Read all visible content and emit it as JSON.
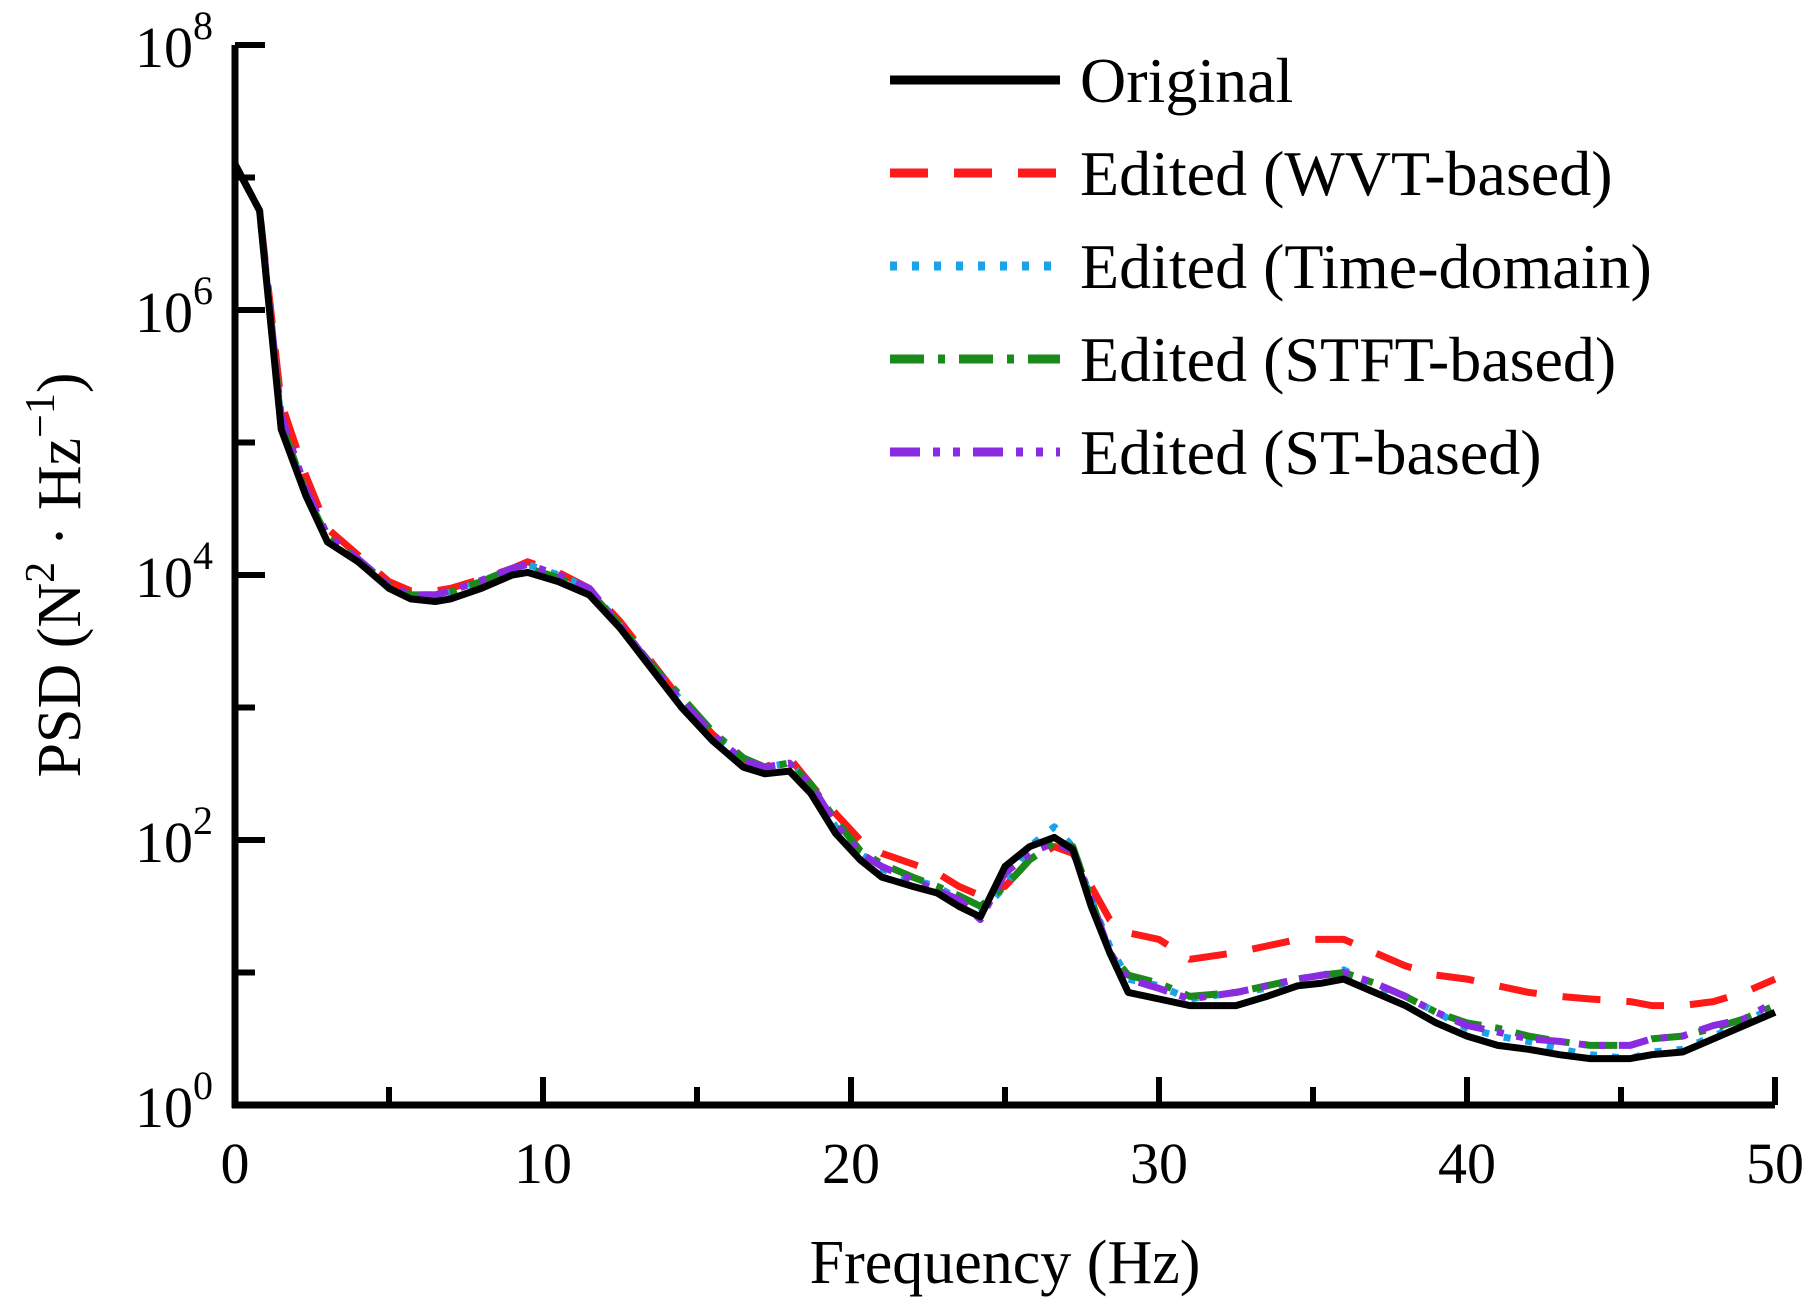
{
  "chart_data": {
    "type": "line",
    "title": "",
    "xlabel": "Frequency (Hz)",
    "ylabel": {
      "text": "PSD (N² · Hz⁻¹)",
      "prefix": "PSD (N",
      "sup1": "2",
      "middle": "· Hz",
      "sup2": "−1",
      "suffix": ")"
    },
    "xlim": [
      0,
      50
    ],
    "ylim_log10": [
      0,
      8
    ],
    "y_scale": "log",
    "x_ticks": [
      0,
      10,
      20,
      30,
      40,
      50
    ],
    "x_tick_labels": [
      "0",
      "10",
      "20",
      "30",
      "40",
      "50"
    ],
    "y_ticks": [
      {
        "base": "10",
        "exp": "0"
      },
      {
        "base": "10",
        "exp": "2"
      },
      {
        "base": "10",
        "exp": "4"
      },
      {
        "base": "10",
        "exp": "6"
      },
      {
        "base": "10",
        "exp": "8"
      }
    ],
    "legend_position": "top-right",
    "series": [
      {
        "name": "Original",
        "color": "#000000",
        "dash": "solid",
        "points": [
          [
            0,
            7.1
          ],
          [
            0.8,
            6.75
          ],
          [
            1.5,
            5.1
          ],
          [
            2.3,
            4.6
          ],
          [
            3,
            4.25
          ],
          [
            4,
            4.1
          ],
          [
            5,
            3.9
          ],
          [
            5.7,
            3.82
          ],
          [
            6.5,
            3.8
          ],
          [
            7,
            3.82
          ],
          [
            8,
            3.9
          ],
          [
            9,
            4.0
          ],
          [
            9.5,
            4.02
          ],
          [
            10.5,
            3.95
          ],
          [
            11.5,
            3.85
          ],
          [
            12.5,
            3.6
          ],
          [
            13.5,
            3.3
          ],
          [
            14.5,
            3.0
          ],
          [
            15.5,
            2.75
          ],
          [
            16.5,
            2.55
          ],
          [
            17.2,
            2.5
          ],
          [
            18,
            2.52
          ],
          [
            18.7,
            2.35
          ],
          [
            19.5,
            2.05
          ],
          [
            20.3,
            1.85
          ],
          [
            21,
            1.72
          ],
          [
            22,
            1.65
          ],
          [
            22.8,
            1.6
          ],
          [
            23.5,
            1.5
          ],
          [
            24.2,
            1.42
          ],
          [
            25,
            1.8
          ],
          [
            25.8,
            1.95
          ],
          [
            26.6,
            2.02
          ],
          [
            27.2,
            1.93
          ],
          [
            27.8,
            1.5
          ],
          [
            28.4,
            1.15
          ],
          [
            29,
            0.85
          ],
          [
            30,
            0.8
          ],
          [
            31,
            0.75
          ],
          [
            32.5,
            0.75
          ],
          [
            33.5,
            0.82
          ],
          [
            34.5,
            0.9
          ],
          [
            35.3,
            0.92
          ],
          [
            36,
            0.95
          ],
          [
            37,
            0.85
          ],
          [
            38,
            0.75
          ],
          [
            39,
            0.62
          ],
          [
            40,
            0.52
          ],
          [
            41,
            0.45
          ],
          [
            42,
            0.42
          ],
          [
            43,
            0.38
          ],
          [
            44,
            0.35
          ],
          [
            45.3,
            0.35
          ],
          [
            46,
            0.38
          ],
          [
            47,
            0.4
          ],
          [
            48,
            0.5
          ],
          [
            49,
            0.6
          ],
          [
            50,
            0.7
          ]
        ]
      },
      {
        "name": "Edited (WVT-based)",
        "color": "#ff1a1a",
        "dash": "long-dash",
        "points": [
          [
            0,
            7.1
          ],
          [
            0.8,
            6.75
          ],
          [
            1.5,
            5.3
          ],
          [
            2.3,
            4.75
          ],
          [
            3,
            4.35
          ],
          [
            4,
            4.15
          ],
          [
            5,
            3.95
          ],
          [
            5.7,
            3.88
          ],
          [
            6.5,
            3.88
          ],
          [
            7,
            3.9
          ],
          [
            8,
            3.97
          ],
          [
            9,
            4.05
          ],
          [
            9.5,
            4.1
          ],
          [
            10.5,
            4.02
          ],
          [
            11.5,
            3.9
          ],
          [
            12.5,
            3.65
          ],
          [
            13.5,
            3.35
          ],
          [
            14.5,
            3.05
          ],
          [
            15.5,
            2.8
          ],
          [
            16.5,
            2.6
          ],
          [
            17.2,
            2.55
          ],
          [
            18,
            2.62
          ],
          [
            18.7,
            2.42
          ],
          [
            19.5,
            2.2
          ],
          [
            20.3,
            2.0
          ],
          [
            21,
            1.9
          ],
          [
            22,
            1.82
          ],
          [
            22.8,
            1.75
          ],
          [
            23.5,
            1.65
          ],
          [
            24.2,
            1.58
          ],
          [
            25,
            1.65
          ],
          [
            25.8,
            1.85
          ],
          [
            26.6,
            1.95
          ],
          [
            27.2,
            1.9
          ],
          [
            27.8,
            1.65
          ],
          [
            28.4,
            1.4
          ],
          [
            29,
            1.3
          ],
          [
            30,
            1.25
          ],
          [
            31,
            1.1
          ],
          [
            32.5,
            1.15
          ],
          [
            33.5,
            1.2
          ],
          [
            34.5,
            1.25
          ],
          [
            35.3,
            1.25
          ],
          [
            36,
            1.25
          ],
          [
            37,
            1.15
          ],
          [
            38,
            1.05
          ],
          [
            39,
            0.98
          ],
          [
            40,
            0.95
          ],
          [
            41,
            0.9
          ],
          [
            42,
            0.85
          ],
          [
            43,
            0.82
          ],
          [
            44,
            0.8
          ],
          [
            45.3,
            0.78
          ],
          [
            46,
            0.75
          ],
          [
            47,
            0.75
          ],
          [
            48,
            0.78
          ],
          [
            49,
            0.85
          ],
          [
            50,
            0.95
          ]
        ]
      },
      {
        "name": "Edited (Time-domain)",
        "color": "#1aa3e8",
        "dash": "dotted",
        "points": [
          [
            0,
            7.1
          ],
          [
            0.8,
            6.75
          ],
          [
            1.5,
            5.15
          ],
          [
            2.3,
            4.62
          ],
          [
            3,
            4.28
          ],
          [
            4,
            4.12
          ],
          [
            5,
            3.92
          ],
          [
            5.7,
            3.85
          ],
          [
            6.5,
            3.85
          ],
          [
            7,
            3.87
          ],
          [
            8,
            3.95
          ],
          [
            9,
            4.05
          ],
          [
            9.5,
            4.08
          ],
          [
            10.5,
            4.0
          ],
          [
            11.5,
            3.9
          ],
          [
            12.5,
            3.62
          ],
          [
            13.5,
            3.32
          ],
          [
            14.5,
            3.05
          ],
          [
            15.5,
            2.8
          ],
          [
            16.5,
            2.6
          ],
          [
            17.2,
            2.55
          ],
          [
            18,
            2.58
          ],
          [
            18.7,
            2.42
          ],
          [
            19.5,
            2.1
          ],
          [
            20.3,
            1.9
          ],
          [
            21,
            1.78
          ],
          [
            22,
            1.7
          ],
          [
            22.8,
            1.65
          ],
          [
            23.5,
            1.55
          ],
          [
            24.2,
            1.45
          ],
          [
            25,
            1.65
          ],
          [
            25.8,
            1.95
          ],
          [
            26.6,
            2.1
          ],
          [
            27.2,
            1.95
          ],
          [
            27.8,
            1.55
          ],
          [
            28.4,
            1.2
          ],
          [
            29,
            0.95
          ],
          [
            30,
            0.9
          ],
          [
            31,
            0.8
          ],
          [
            32.5,
            0.85
          ],
          [
            33.5,
            0.88
          ],
          [
            34.5,
            0.95
          ],
          [
            35.3,
            0.98
          ],
          [
            36,
            1.02
          ],
          [
            37,
            0.9
          ],
          [
            38,
            0.82
          ],
          [
            39,
            0.7
          ],
          [
            40,
            0.58
          ],
          [
            41,
            0.52
          ],
          [
            42,
            0.48
          ],
          [
            43,
            0.42
          ],
          [
            44,
            0.38
          ],
          [
            45.3,
            0.35
          ],
          [
            46,
            0.4
          ],
          [
            47,
            0.42
          ],
          [
            48,
            0.52
          ],
          [
            49,
            0.62
          ],
          [
            50,
            0.75
          ]
        ]
      },
      {
        "name": "Edited (STFT-based)",
        "color": "#1a8a1a",
        "dash": "dash-dot",
        "points": [
          [
            0,
            7.1
          ],
          [
            0.8,
            6.75
          ],
          [
            1.5,
            5.15
          ],
          [
            2.3,
            4.62
          ],
          [
            3,
            4.28
          ],
          [
            4,
            4.12
          ],
          [
            5,
            3.92
          ],
          [
            5.7,
            3.85
          ],
          [
            6.5,
            3.85
          ],
          [
            7,
            3.87
          ],
          [
            8,
            3.95
          ],
          [
            9,
            4.05
          ],
          [
            9.5,
            4.05
          ],
          [
            10.5,
            3.98
          ],
          [
            11.5,
            3.88
          ],
          [
            12.5,
            3.62
          ],
          [
            13.5,
            3.33
          ],
          [
            14.5,
            3.08
          ],
          [
            15.5,
            2.82
          ],
          [
            16.5,
            2.62
          ],
          [
            17.2,
            2.55
          ],
          [
            18,
            2.58
          ],
          [
            18.7,
            2.42
          ],
          [
            19.5,
            2.15
          ],
          [
            20.3,
            1.92
          ],
          [
            21,
            1.82
          ],
          [
            22,
            1.72
          ],
          [
            22.8,
            1.65
          ],
          [
            23.5,
            1.58
          ],
          [
            24.2,
            1.5
          ],
          [
            25,
            1.65
          ],
          [
            25.8,
            1.85
          ],
          [
            26.6,
            1.98
          ],
          [
            27.2,
            1.95
          ],
          [
            27.8,
            1.55
          ],
          [
            28.4,
            1.15
          ],
          [
            29,
            0.98
          ],
          [
            30,
            0.92
          ],
          [
            31,
            0.82
          ],
          [
            32.5,
            0.85
          ],
          [
            33.5,
            0.9
          ],
          [
            34.5,
            0.95
          ],
          [
            35.3,
            0.98
          ],
          [
            36,
            1.0
          ],
          [
            37,
            0.92
          ],
          [
            38,
            0.82
          ],
          [
            39,
            0.7
          ],
          [
            40,
            0.62
          ],
          [
            41,
            0.58
          ],
          [
            42,
            0.52
          ],
          [
            43,
            0.48
          ],
          [
            44,
            0.45
          ],
          [
            45.3,
            0.45
          ],
          [
            46,
            0.5
          ],
          [
            47,
            0.52
          ],
          [
            48,
            0.58
          ],
          [
            49,
            0.65
          ],
          [
            50,
            0.75
          ]
        ]
      },
      {
        "name": "Edited (ST-based)",
        "color": "#8a2be2",
        "dash": "dash-dot-dot",
        "points": [
          [
            0,
            7.1
          ],
          [
            0.8,
            6.75
          ],
          [
            1.5,
            5.2
          ],
          [
            2.3,
            4.65
          ],
          [
            3,
            4.3
          ],
          [
            4,
            4.12
          ],
          [
            5,
            3.92
          ],
          [
            5.7,
            3.85
          ],
          [
            6.5,
            3.85
          ],
          [
            7,
            3.88
          ],
          [
            8,
            3.96
          ],
          [
            9,
            4.05
          ],
          [
            9.5,
            4.08
          ],
          [
            10.5,
            4.0
          ],
          [
            11.5,
            3.9
          ],
          [
            12.5,
            3.62
          ],
          [
            13.5,
            3.32
          ],
          [
            14.5,
            3.05
          ],
          [
            15.5,
            2.8
          ],
          [
            16.5,
            2.6
          ],
          [
            17.2,
            2.55
          ],
          [
            18,
            2.58
          ],
          [
            18.7,
            2.42
          ],
          [
            19.5,
            2.12
          ],
          [
            20.3,
            1.9
          ],
          [
            21,
            1.8
          ],
          [
            22,
            1.7
          ],
          [
            22.8,
            1.62
          ],
          [
            23.5,
            1.55
          ],
          [
            24.2,
            1.4
          ],
          [
            25,
            1.75
          ],
          [
            25.8,
            1.9
          ],
          [
            26.6,
            1.98
          ],
          [
            27.2,
            1.92
          ],
          [
            27.8,
            1.55
          ],
          [
            28.4,
            1.15
          ],
          [
            29,
            0.95
          ],
          [
            30,
            0.88
          ],
          [
            31,
            0.8
          ],
          [
            32.5,
            0.85
          ],
          [
            33.5,
            0.9
          ],
          [
            34.5,
            0.95
          ],
          [
            35.3,
            0.98
          ],
          [
            36,
            1.0
          ],
          [
            37,
            0.92
          ],
          [
            38,
            0.82
          ],
          [
            39,
            0.7
          ],
          [
            40,
            0.6
          ],
          [
            41,
            0.55
          ],
          [
            42,
            0.5
          ],
          [
            43,
            0.48
          ],
          [
            44,
            0.45
          ],
          [
            45.3,
            0.45
          ],
          [
            46,
            0.5
          ],
          [
            47,
            0.52
          ],
          [
            48,
            0.6
          ],
          [
            49,
            0.65
          ],
          [
            50,
            0.78
          ]
        ]
      }
    ]
  }
}
